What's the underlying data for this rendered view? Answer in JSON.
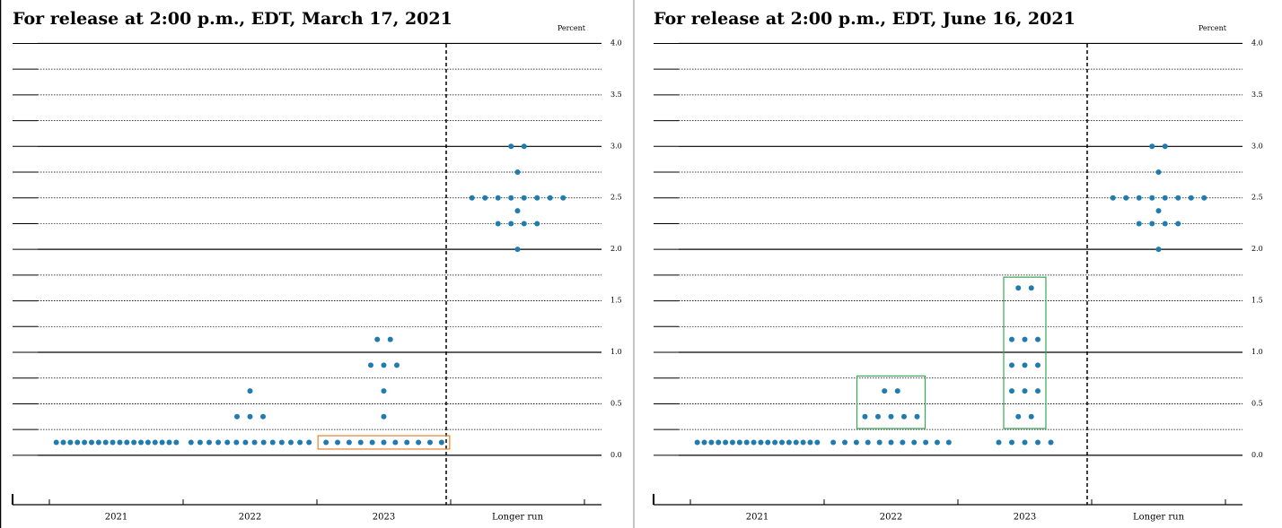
{
  "chart_data": [
    {
      "type": "dot",
      "title": "For release at 2:00 p.m., EDT, March 17, 2021",
      "ylabel": "Percent",
      "categories": [
        "2021",
        "2022",
        "2023",
        "Longer run"
      ],
      "dots": [
        [
          0.125,
          0.125,
          0.125,
          0.125,
          0.125,
          0.125,
          0.125,
          0.125,
          0.125,
          0.125,
          0.125,
          0.125,
          0.125,
          0.125,
          0.125,
          0.125,
          0.125,
          0.125
        ],
        [
          0.125,
          0.125,
          0.125,
          0.125,
          0.125,
          0.125,
          0.125,
          0.125,
          0.125,
          0.125,
          0.125,
          0.125,
          0.125,
          0.125,
          0.375,
          0.375,
          0.375,
          0.625
        ],
        [
          0.125,
          0.125,
          0.125,
          0.125,
          0.125,
          0.125,
          0.125,
          0.125,
          0.125,
          0.125,
          0.125,
          0.375,
          0.625,
          0.875,
          0.875,
          0.875,
          1.125,
          1.125
        ],
        [
          2.0,
          2.25,
          2.25,
          2.25,
          2.25,
          2.375,
          2.5,
          2.5,
          2.5,
          2.5,
          2.5,
          2.5,
          2.5,
          2.5,
          2.75,
          3.0,
          3.0
        ]
      ],
      "color": "#1f7bb0",
      "ylim": [
        -0.48,
        4.03
      ],
      "yticks": [
        {
          "value": 0,
          "label": "0.0"
        },
        {
          "value": 0.5,
          "label": "0.5"
        },
        {
          "value": 1,
          "label": "1.0"
        },
        {
          "value": 1.5,
          "label": "1.5"
        },
        {
          "value": 2,
          "label": "2.0"
        },
        {
          "value": 2.5,
          "label": "2.5"
        },
        {
          "value": 3,
          "label": "3.0"
        },
        {
          "value": 3.5,
          "label": "3.5"
        },
        {
          "value": 4,
          "label": "4.0"
        }
      ],
      "minor_yticks": [
        0.25,
        0.75,
        1.25,
        1.75,
        2.25,
        2.75,
        3.25,
        3.75
      ],
      "highlights": [
        {
          "category": 2,
          "ylim": [
            0.06,
            0.19
          ],
          "color": "#e8822a"
        }
      ]
    },
    {
      "type": "dot",
      "title": "For release at 2:00 p.m., EDT, June 16, 2021",
      "ylabel": "Percent",
      "categories": [
        "2021",
        "2022",
        "2023",
        "Longer run"
      ],
      "dots": [
        [
          0.125,
          0.125,
          0.125,
          0.125,
          0.125,
          0.125,
          0.125,
          0.125,
          0.125,
          0.125,
          0.125,
          0.125,
          0.125,
          0.125,
          0.125,
          0.125,
          0.125,
          0.125
        ],
        [
          0.125,
          0.125,
          0.125,
          0.125,
          0.125,
          0.125,
          0.125,
          0.125,
          0.125,
          0.125,
          0.125,
          0.375,
          0.375,
          0.375,
          0.375,
          0.375,
          0.625,
          0.625
        ],
        [
          0.125,
          0.125,
          0.125,
          0.125,
          0.125,
          0.375,
          0.375,
          0.625,
          0.625,
          0.625,
          0.875,
          0.875,
          0.875,
          1.125,
          1.125,
          1.125,
          1.625,
          1.625
        ],
        [
          2.0,
          2.25,
          2.25,
          2.25,
          2.25,
          2.375,
          2.5,
          2.5,
          2.5,
          2.5,
          2.5,
          2.5,
          2.5,
          2.5,
          2.75,
          3.0,
          3.0
        ]
      ],
      "color": "#1f7bb0",
      "ylim": [
        -0.48,
        4.03
      ],
      "yticks": [
        {
          "value": 0,
          "label": "0.0"
        },
        {
          "value": 0.5,
          "label": "0.5"
        },
        {
          "value": 1,
          "label": "1.0"
        },
        {
          "value": 1.5,
          "label": "1.5"
        },
        {
          "value": 2,
          "label": "2.0"
        },
        {
          "value": 2.5,
          "label": "2.5"
        },
        {
          "value": 3,
          "label": "3.0"
        },
        {
          "value": 3.5,
          "label": "3.5"
        },
        {
          "value": 4,
          "label": "4.0"
        }
      ],
      "minor_yticks": [
        0.25,
        0.75,
        1.25,
        1.75,
        2.25,
        2.75,
        3.25,
        3.75
      ],
      "highlights": [
        {
          "category": 1,
          "ylim": [
            0.26,
            0.77
          ],
          "color": "#3aa655"
        },
        {
          "category": 2,
          "ylim": [
            0.26,
            1.73
          ],
          "color": "#3aa655"
        }
      ]
    }
  ]
}
